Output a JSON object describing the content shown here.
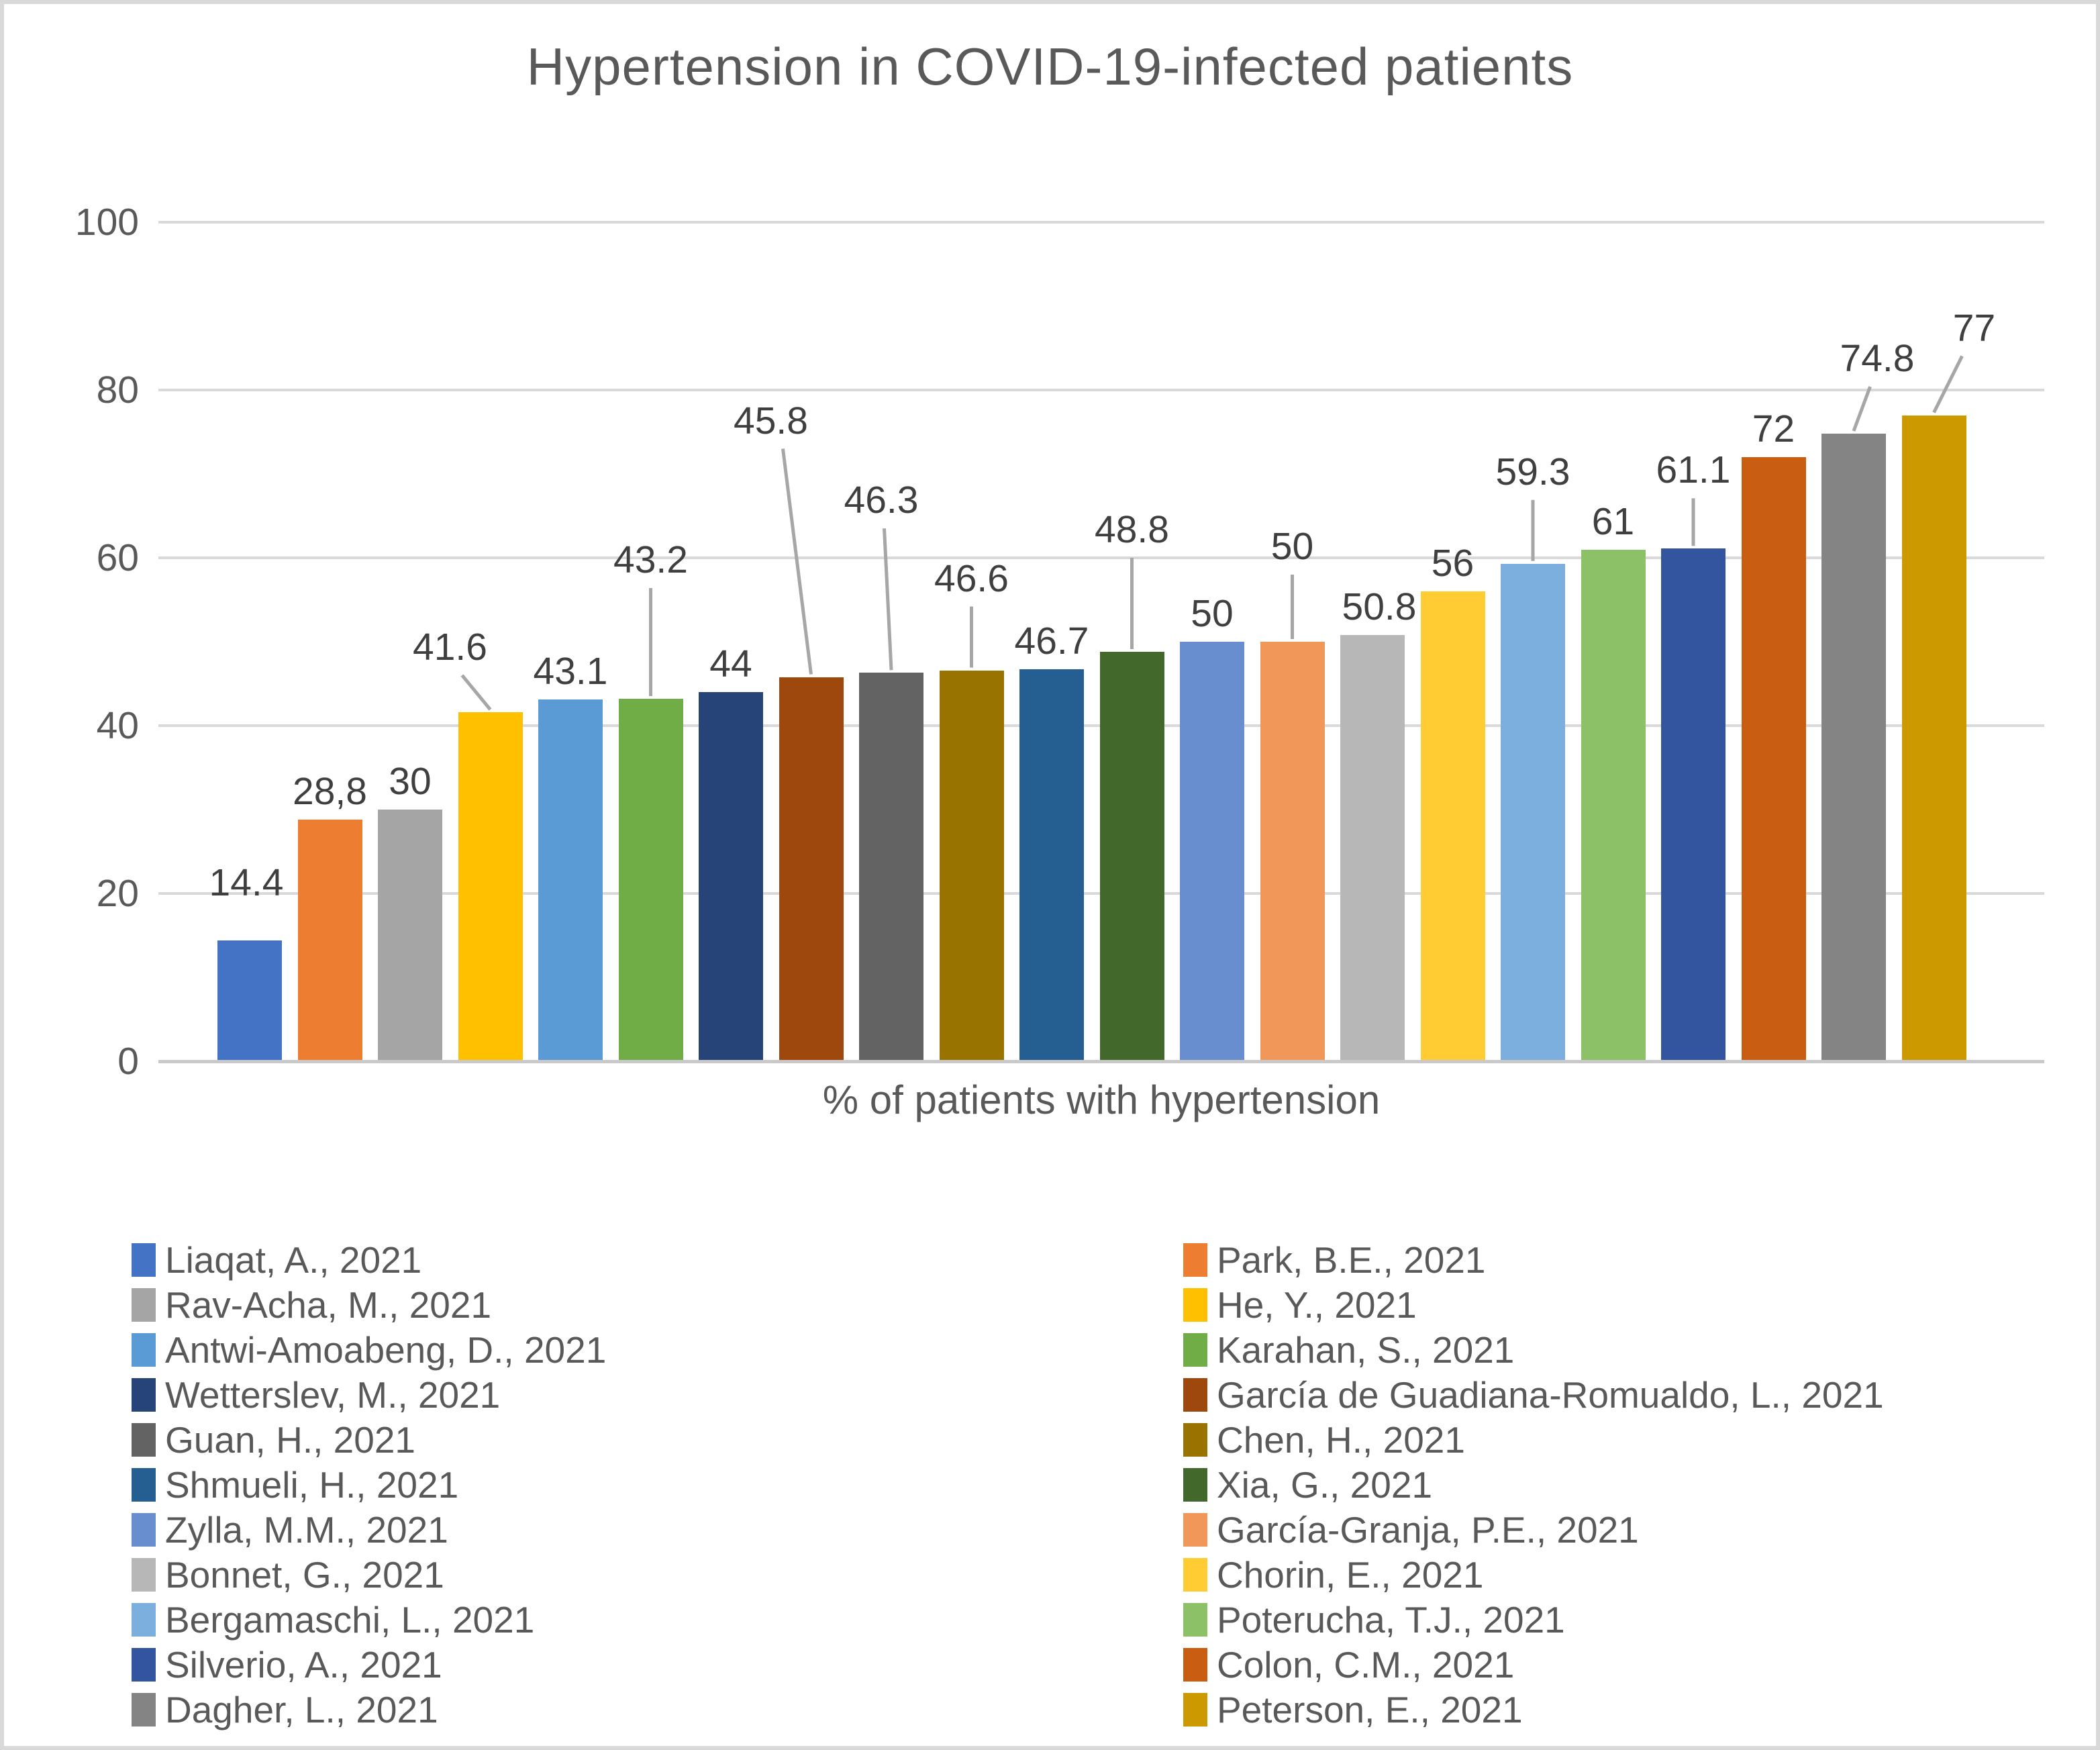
{
  "title": "Hypertension in COVID-19-infected patients",
  "x_axis_label": "% of patients with hypertension",
  "colors": {
    "background": "#ffffff",
    "frame": "#d9d9d9",
    "gridline": "#d9d9d9",
    "axis_line": "#c9c9c9",
    "leader_line": "#a6a6a6",
    "title_text": "#595959",
    "tick_text": "#595959",
    "data_label_text": "#3f3f3f",
    "legend_text": "#595959"
  },
  "chart_data": {
    "type": "bar",
    "title": "Hypertension in COVID-19-infected patients",
    "xlabel": "% of patients with hypertension",
    "ylabel": "",
    "ylim": [
      0,
      100
    ],
    "y_ticks": [
      0,
      20,
      40,
      60,
      80,
      100
    ],
    "grid": true,
    "legend_position": "bottom, two columns",
    "categories": [
      "Liaqat, A., 2021",
      "Park, B.E., 2021",
      "Rav-Acha, M., 2021",
      "He, Y., 2021",
      "Antwi-Amoabeng, D., 2021",
      "Karahan, S., 2021",
      "Wetterslev, M., 2021",
      "García de Guadiana-Romualdo, L., 2021",
      "Guan, H., 2021",
      "Chen, H., 2021",
      "Shmueli, H., 2021",
      "Xia, G., 2021",
      "Zylla, M.M., 2021",
      "García-Granja, P.E., 2021",
      "Bonnet, G., 2021",
      "Chorin, E., 2021",
      "Bergamaschi, L., 2021",
      "Poterucha, T.J., 2021",
      "Silverio, A., 2021",
      "Colon, C.M., 2021",
      "Dagher, L., 2021",
      "Peterson, E., 2021"
    ],
    "values": [
      14.4,
      28.8,
      30,
      41.6,
      43.1,
      43.2,
      44,
      45.8,
      46.3,
      46.6,
      46.7,
      48.8,
      50,
      50,
      50.8,
      56,
      59.3,
      61,
      61.1,
      72,
      74.8,
      77
    ],
    "value_labels": [
      "14.4",
      "28,8",
      "30",
      "41.6",
      "43.1",
      "43.2",
      "44",
      "45.8",
      "46.3",
      "46.6",
      "46.7",
      "48.8",
      "50",
      "50",
      "50.8",
      "56",
      "59.3",
      "61",
      "61.1",
      "72",
      "74.8",
      "77"
    ],
    "bar_colors": [
      "#4472C4",
      "#ED7D31",
      "#A5A5A5",
      "#FFC000",
      "#5B9BD5",
      "#70AD47",
      "#264478",
      "#9E480E",
      "#636363",
      "#997300",
      "#255E91",
      "#43682B",
      "#698ED0",
      "#F1975A",
      "#B7B7B7",
      "#FFCD33",
      "#7CAFDD",
      "#8CC168",
      "#33549E",
      "#C95E13",
      "#848484",
      "#CC9A00"
    ],
    "label_layout": [
      {
        "raise": 44,
        "dx": -5,
        "leader": false
      },
      {
        "raise": 0,
        "dx": 0,
        "leader": false
      },
      {
        "raise": 0,
        "dx": 0,
        "leader": false
      },
      {
        "raise": 55,
        "dx": -60,
        "leader": true
      },
      {
        "raise": 0,
        "dx": 0,
        "leader": false
      },
      {
        "raise": 165,
        "dx": 0,
        "leader": true
      },
      {
        "raise": 0,
        "dx": 0,
        "leader": false
      },
      {
        "raise": 340,
        "dx": -60,
        "leader": true
      },
      {
        "raise": 215,
        "dx": -15,
        "leader": true
      },
      {
        "raise": 95,
        "dx": 0,
        "leader": true
      },
      {
        "raise": 0,
        "dx": 0,
        "leader": false
      },
      {
        "raise": 140,
        "dx": 0,
        "leader": true
      },
      {
        "raise": 0,
        "dx": 0,
        "leader": false
      },
      {
        "raise": 100,
        "dx": 0,
        "leader": true
      },
      {
        "raise": 0,
        "dx": 10,
        "leader": false
      },
      {
        "raise": 0,
        "dx": 0,
        "leader": false
      },
      {
        "raise": 95,
        "dx": 0,
        "leader": true
      },
      {
        "raise": 0,
        "dx": 0,
        "leader": false
      },
      {
        "raise": 75,
        "dx": 0,
        "leader": true
      },
      {
        "raise": 0,
        "dx": 0,
        "leader": false
      },
      {
        "raise": 70,
        "dx": 35,
        "leader": true
      },
      {
        "raise": 88,
        "dx": 60,
        "leader": true
      }
    ]
  }
}
